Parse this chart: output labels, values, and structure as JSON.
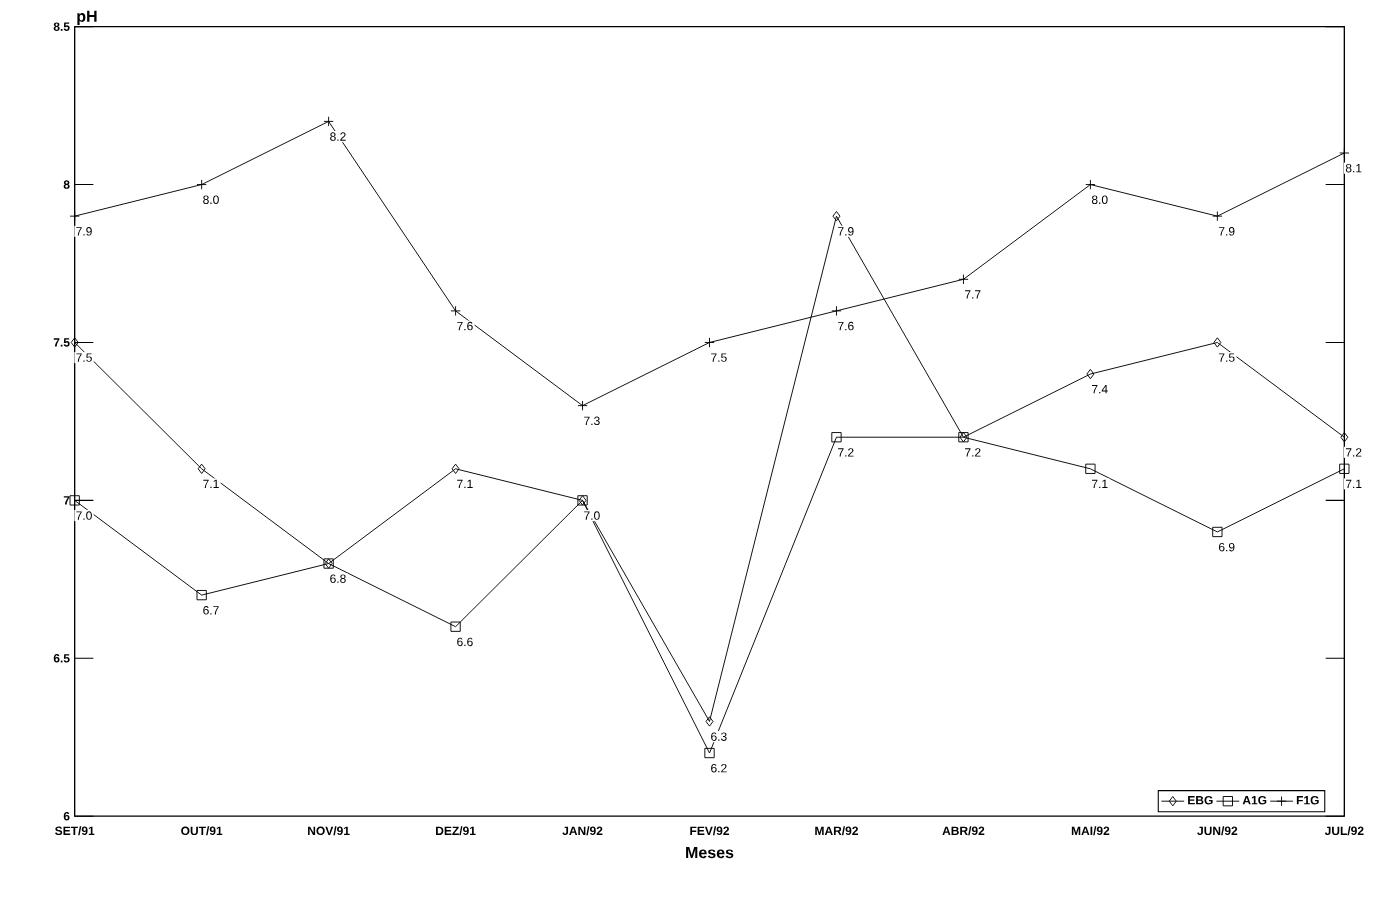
{
  "chart_data": {
    "type": "line",
    "xlabel": "Meses",
    "ylabel": "pH",
    "categories": [
      "SET/91",
      "OUT/91",
      "NOV/91",
      "DEZ/91",
      "JAN/92",
      "FEV/92",
      "MAR/92",
      "ABR/92",
      "MAI/92",
      "JUN/92",
      "JUL/92"
    ],
    "series": [
      {
        "name": "EBG",
        "color": "#000000",
        "marker": "diamond",
        "values": [
          7.5,
          7.1,
          6.8,
          7.1,
          7.0,
          6.3,
          7.9,
          7.2,
          7.4,
          7.5,
          7.2
        ],
        "value_labels": [
          "7.5",
          "7.1",
          null,
          "7.1",
          null,
          "6.3",
          "7.9",
          "7.2",
          "7.4",
          "7.5",
          "7.2"
        ]
      },
      {
        "name": "A1G",
        "color": "#000000",
        "marker": "square",
        "values": [
          7.0,
          6.7,
          6.8,
          6.6,
          7.0,
          6.2,
          7.2,
          7.2,
          7.1,
          6.9,
          7.1
        ],
        "value_labels": [
          "7.0",
          "6.7",
          "6.8",
          "6.6",
          "7.0",
          "6.2",
          "7.2",
          null,
          "7.1",
          "6.9",
          "7.1"
        ]
      },
      {
        "name": "F1G",
        "color": "#000000",
        "marker": "cross",
        "values": [
          7.9,
          8.0,
          8.2,
          7.6,
          7.3,
          7.5,
          7.6,
          7.7,
          8.0,
          7.9,
          8.1
        ],
        "value_labels": [
          "7.9",
          "8.0",
          "8.2",
          "7.6",
          "7.3",
          "7.5",
          "7.6",
          "7.7",
          "8.0",
          "7.9",
          "8.1"
        ]
      }
    ],
    "ylim": [
      6,
      8.5
    ],
    "yticks": [
      6,
      6.5,
      7,
      7.5,
      8,
      8.5
    ],
    "grid": false,
    "legend": "bottom right",
    "line_style": "solid"
  }
}
